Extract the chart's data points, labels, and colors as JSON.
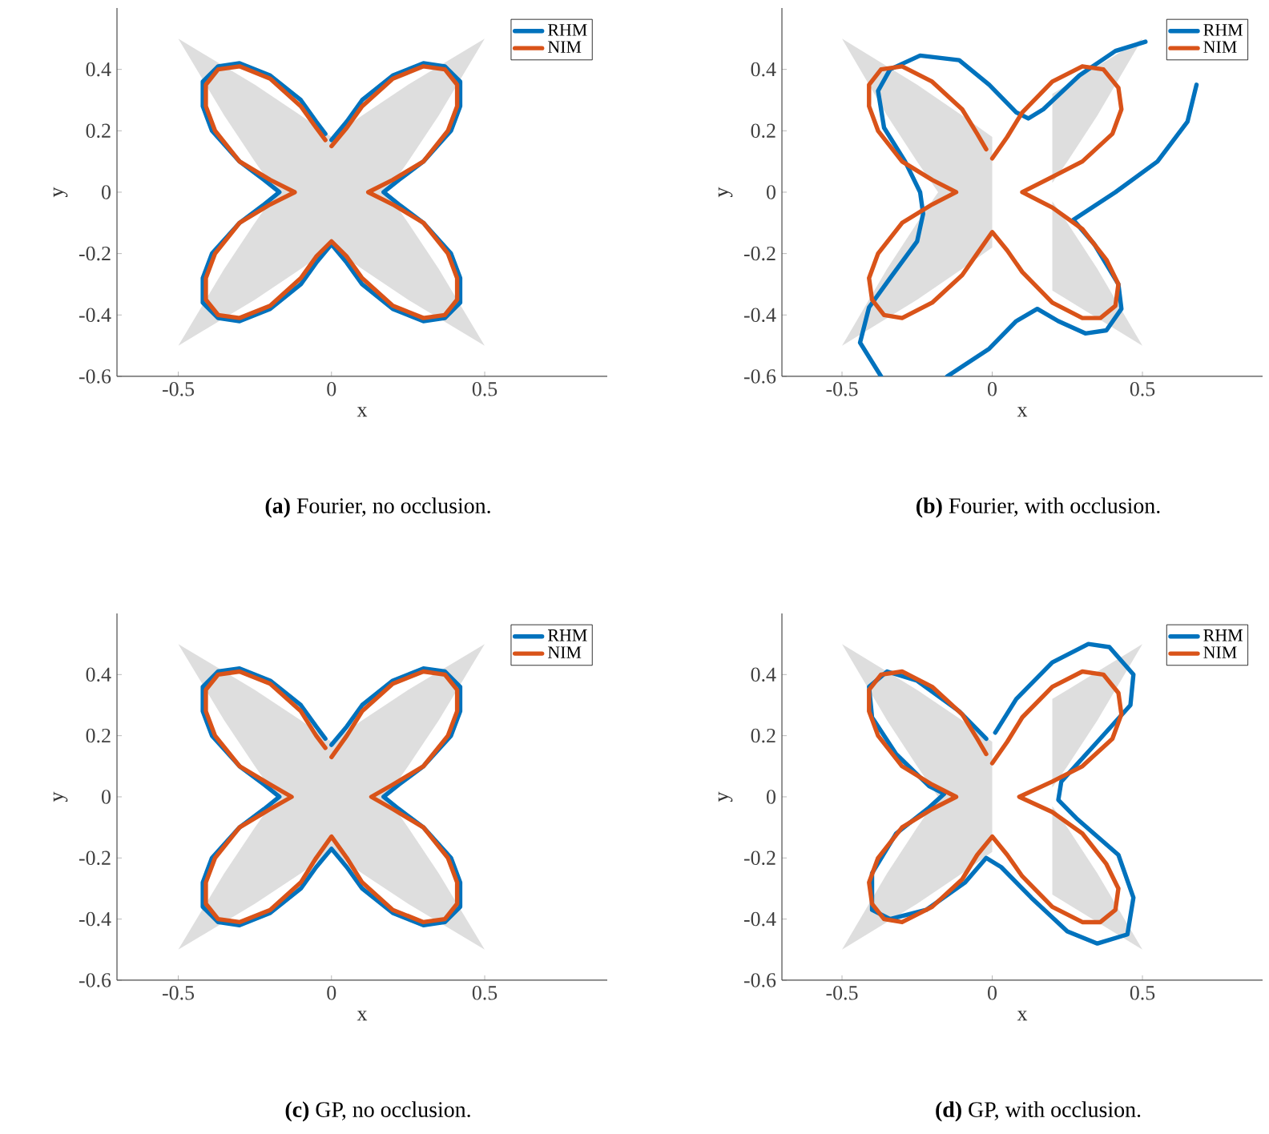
{
  "chart_data": [
    {
      "type": "line",
      "annotations": [
        "**(a)** Fourier, no occlusion."
      ],
      "xlabel": "x",
      "ylabel": "y",
      "xlim": [
        -0.7,
        0.9
      ],
      "ylim": [
        -0.6,
        0.6
      ],
      "xticks": [
        -0.5,
        0,
        0.5
      ],
      "yticks": [
        -0.6,
        -0.4,
        -0.2,
        0,
        0.2,
        0.4
      ],
      "legend": "top right",
      "series": [
        {
          "type": "area",
          "color": "#dedede",
          "x": [
            -0.5,
            -0.25,
            -0.1,
            0,
            0.1,
            0.25,
            0.5,
            0.35,
            0.25,
            0.18,
            0.25,
            0.35,
            0.5,
            0.25,
            0.1,
            0,
            -0.1,
            -0.25,
            -0.5,
            -0.35,
            -0.25,
            -0.18,
            -0.25,
            -0.35
          ],
          "values": [
            0.5,
            0.35,
            0.25,
            0.18,
            0.25,
            0.35,
            0.5,
            0.25,
            0.1,
            0,
            -0.1,
            -0.25,
            -0.5,
            -0.35,
            -0.25,
            -0.18,
            -0.25,
            -0.35,
            -0.5,
            -0.25,
            -0.1,
            0,
            0.1,
            0.25
          ]
        },
        {
          "name": "RHM",
          "color": "#0072bd",
          "x": [
            0,
            0.05,
            0.1,
            0.2,
            0.3,
            0.37,
            0.42,
            0.42,
            0.39,
            0.3,
            0.22,
            0.17,
            0.22,
            0.3,
            0.39,
            0.42,
            0.42,
            0.37,
            0.3,
            0.2,
            0.1,
            0.05,
            0,
            -0.05,
            -0.1,
            -0.2,
            -0.3,
            -0.37,
            -0.42,
            -0.42,
            -0.39,
            -0.3,
            -0.22,
            -0.17,
            -0.22,
            -0.3,
            -0.39,
            -0.42,
            -0.42,
            -0.37,
            -0.3,
            -0.2,
            -0.1,
            -0.05,
            -0.02
          ],
          "values": [
            0.17,
            0.23,
            0.3,
            0.38,
            0.42,
            0.41,
            0.36,
            0.28,
            0.2,
            0.1,
            0.04,
            0,
            -0.04,
            -0.1,
            -0.2,
            -0.28,
            -0.36,
            -0.41,
            -0.42,
            -0.38,
            -0.3,
            -0.23,
            -0.17,
            -0.23,
            -0.3,
            -0.38,
            -0.42,
            -0.41,
            -0.36,
            -0.28,
            -0.2,
            -0.1,
            -0.04,
            0,
            0.04,
            0.1,
            0.2,
            0.28,
            0.36,
            0.41,
            0.42,
            0.38,
            0.3,
            0.23,
            0.19
          ]
        },
        {
          "name": "NIM",
          "color": "#d95319",
          "x": [
            0,
            0.05,
            0.1,
            0.2,
            0.3,
            0.37,
            0.41,
            0.41,
            0.38,
            0.3,
            0.2,
            0.12,
            0.2,
            0.3,
            0.38,
            0.41,
            0.41,
            0.37,
            0.3,
            0.2,
            0.1,
            0.05,
            0,
            -0.05,
            -0.1,
            -0.2,
            -0.3,
            -0.37,
            -0.41,
            -0.41,
            -0.38,
            -0.3,
            -0.2,
            -0.12,
            -0.2,
            -0.3,
            -0.38,
            -0.41,
            -0.41,
            -0.37,
            -0.3,
            -0.2,
            -0.1,
            -0.05,
            -0.02
          ],
          "values": [
            0.15,
            0.21,
            0.28,
            0.37,
            0.41,
            0.4,
            0.35,
            0.28,
            0.2,
            0.1,
            0.04,
            0,
            -0.04,
            -0.1,
            -0.2,
            -0.28,
            -0.35,
            -0.4,
            -0.41,
            -0.37,
            -0.28,
            -0.21,
            -0.16,
            -0.21,
            -0.28,
            -0.37,
            -0.41,
            -0.4,
            -0.35,
            -0.28,
            -0.2,
            -0.1,
            -0.04,
            0,
            0.04,
            0.1,
            0.2,
            0.28,
            0.35,
            0.4,
            0.41,
            0.37,
            0.28,
            0.21,
            0.17
          ]
        }
      ]
    },
    {
      "type": "line",
      "annotations": [
        "**(b)** Fourier, with occlusion."
      ],
      "xlabel": "x",
      "ylabel": "y",
      "xlim": [
        -0.7,
        0.9
      ],
      "ylim": [
        -0.6,
        0.6
      ],
      "xticks": [
        -0.5,
        0,
        0.5
      ],
      "yticks": [
        -0.6,
        -0.4,
        -0.2,
        0,
        0.2,
        0.4
      ],
      "legend": "top right",
      "series": [
        {
          "type": "area",
          "color": "#dedede",
          "x": [
            0,
            -0.1,
            -0.25,
            -0.5,
            -0.35,
            -0.25,
            -0.18,
            -0.25,
            -0.35,
            -0.5,
            -0.25,
            -0.1,
            0
          ],
          "values": [
            0.18,
            0.25,
            0.35,
            0.5,
            0.25,
            0.1,
            0,
            -0.1,
            -0.25,
            -0.5,
            -0.35,
            -0.25,
            -0.18
          ]
        },
        {
          "type": "area",
          "color": "#dedede",
          "x": [
            0.2,
            0.25,
            0.5,
            0.35,
            0.25,
            0.2,
            0.2,
            0.25,
            0.35,
            0.5,
            0.25,
            0.2
          ],
          "values": [
            0.32,
            0.35,
            0.5,
            0.25,
            0.1,
            0.03,
            -0.03,
            -0.1,
            -0.25,
            -0.5,
            -0.35,
            -0.32
          ]
        },
        {
          "name": "RHM",
          "color": "#0072bd",
          "x": [
            -0.37,
            -0.44,
            -0.41,
            -0.34,
            -0.25,
            -0.23,
            -0.24,
            -0.29,
            -0.36,
            -0.38,
            -0.34,
            -0.24,
            -0.11,
            -0.01,
            0.08,
            0.12,
            0.17,
            0.29,
            0.41,
            0.51,
            0.64,
            0.68,
            0.65,
            0.55,
            0.41,
            0.27,
            0.34,
            0.42,
            0.43,
            0.38,
            0.31,
            0.22,
            0.15,
            0.08,
            -0.01,
            -0.15
          ],
          "values": [
            -0.6,
            -0.49,
            -0.375,
            -0.28,
            -0.16,
            -0.07,
            0,
            0.1,
            0.21,
            0.33,
            0.4,
            0.445,
            0.43,
            0.35,
            0.26,
            0.24,
            0.27,
            0.38,
            0.46,
            0.49,
            null,
            0.35,
            0.23,
            0.1,
            0,
            -0.09,
            -0.17,
            -0.3,
            -0.38,
            -0.45,
            -0.46,
            -0.42,
            -0.38,
            -0.42,
            -0.51,
            -0.6
          ]
        },
        {
          "name": "NIM",
          "color": "#d95319",
          "x": [
            0,
            0.05,
            0.1,
            0.2,
            0.3,
            0.37,
            0.42,
            0.43,
            0.4,
            0.3,
            0.2,
            0.1,
            0.2,
            0.3,
            0.38,
            0.42,
            0.41,
            0.36,
            0.3,
            0.2,
            0.1,
            0.05,
            0,
            -0.05,
            -0.1,
            -0.2,
            -0.3,
            -0.36,
            -0.4,
            -0.41,
            -0.38,
            -0.3,
            -0.2,
            -0.12,
            -0.2,
            -0.3,
            -0.38,
            -0.41,
            -0.41,
            -0.37,
            -0.3,
            -0.2,
            -0.1,
            -0.05,
            -0.02
          ],
          "values": [
            0.11,
            0.18,
            0.26,
            0.36,
            0.41,
            0.4,
            0.34,
            0.27,
            0.19,
            0.1,
            0.05,
            0,
            -0.05,
            -0.12,
            -0.22,
            -0.3,
            -0.37,
            -0.41,
            -0.41,
            -0.36,
            -0.26,
            -0.19,
            -0.13,
            -0.2,
            -0.27,
            -0.36,
            -0.41,
            -0.4,
            -0.35,
            -0.28,
            -0.2,
            -0.1,
            -0.04,
            0,
            0.04,
            0.1,
            0.2,
            0.28,
            0.35,
            0.4,
            0.41,
            0.36,
            0.27,
            0.19,
            0.14
          ]
        }
      ]
    },
    {
      "type": "line",
      "annotations": [
        "**(c)** GP, no occlusion."
      ],
      "xlabel": "x",
      "ylabel": "y",
      "xlim": [
        -0.7,
        0.9
      ],
      "ylim": [
        -0.6,
        0.6
      ],
      "xticks": [
        -0.5,
        0,
        0.5
      ],
      "yticks": [
        -0.6,
        -0.4,
        -0.2,
        0,
        0.2,
        0.4
      ],
      "legend": "top right",
      "series": [
        {
          "type": "area",
          "color": "#dedede",
          "x": [
            -0.5,
            -0.25,
            -0.1,
            0,
            0.1,
            0.25,
            0.5,
            0.35,
            0.25,
            0.18,
            0.25,
            0.35,
            0.5,
            0.25,
            0.1,
            0,
            -0.1,
            -0.25,
            -0.5,
            -0.35,
            -0.25,
            -0.18,
            -0.25,
            -0.35
          ],
          "values": [
            0.5,
            0.35,
            0.25,
            0.18,
            0.25,
            0.35,
            0.5,
            0.25,
            0.1,
            0,
            -0.1,
            -0.25,
            -0.5,
            -0.35,
            -0.25,
            -0.18,
            -0.25,
            -0.35,
            -0.5,
            -0.25,
            -0.1,
            0,
            0.1,
            0.25
          ]
        },
        {
          "name": "RHM",
          "color": "#0072bd",
          "x": [
            0,
            0.05,
            0.1,
            0.2,
            0.3,
            0.37,
            0.42,
            0.42,
            0.39,
            0.3,
            0.22,
            0.17,
            0.22,
            0.3,
            0.39,
            0.42,
            0.42,
            0.37,
            0.3,
            0.2,
            0.1,
            0.05,
            0,
            -0.05,
            -0.1,
            -0.2,
            -0.3,
            -0.37,
            -0.42,
            -0.42,
            -0.39,
            -0.3,
            -0.22,
            -0.17,
            -0.22,
            -0.3,
            -0.39,
            -0.42,
            -0.42,
            -0.37,
            -0.3,
            -0.2,
            -0.1,
            -0.05,
            -0.02
          ],
          "values": [
            0.17,
            0.23,
            0.3,
            0.38,
            0.42,
            0.41,
            0.36,
            0.28,
            0.2,
            0.1,
            0.04,
            0,
            -0.04,
            -0.1,
            -0.2,
            -0.28,
            -0.36,
            -0.41,
            -0.42,
            -0.38,
            -0.3,
            -0.23,
            -0.17,
            -0.23,
            -0.3,
            -0.38,
            -0.42,
            -0.41,
            -0.36,
            -0.28,
            -0.2,
            -0.1,
            -0.04,
            0,
            0.04,
            0.1,
            0.2,
            0.28,
            0.36,
            0.41,
            0.42,
            0.38,
            0.3,
            0.23,
            0.19
          ]
        },
        {
          "name": "NIM",
          "color": "#d95319",
          "x": [
            0,
            0.05,
            0.1,
            0.2,
            0.3,
            0.37,
            0.41,
            0.41,
            0.38,
            0.3,
            0.2,
            0.13,
            0.2,
            0.3,
            0.38,
            0.41,
            0.41,
            0.37,
            0.3,
            0.2,
            0.1,
            0.05,
            0,
            -0.05,
            -0.1,
            -0.2,
            -0.3,
            -0.37,
            -0.41,
            -0.41,
            -0.38,
            -0.3,
            -0.2,
            -0.13,
            -0.2,
            -0.3,
            -0.38,
            -0.41,
            -0.41,
            -0.37,
            -0.3,
            -0.2,
            -0.1,
            -0.05,
            -0.02
          ],
          "values": [
            0.13,
            0.2,
            0.28,
            0.37,
            0.41,
            0.4,
            0.35,
            0.28,
            0.2,
            0.1,
            0.04,
            0,
            -0.04,
            -0.1,
            -0.2,
            -0.28,
            -0.35,
            -0.4,
            -0.41,
            -0.37,
            -0.28,
            -0.2,
            -0.13,
            -0.2,
            -0.28,
            -0.37,
            -0.41,
            -0.4,
            -0.35,
            -0.28,
            -0.2,
            -0.1,
            -0.04,
            0,
            0.04,
            0.1,
            0.2,
            0.28,
            0.35,
            0.4,
            0.41,
            0.37,
            0.28,
            0.2,
            0.16
          ]
        }
      ]
    },
    {
      "type": "line",
      "annotations": [
        "**(d)** GP, with occlusion."
      ],
      "xlabel": "x",
      "ylabel": "y",
      "xlim": [
        -0.7,
        0.9
      ],
      "ylim": [
        -0.6,
        0.6
      ],
      "xticks": [
        -0.5,
        0,
        0.5
      ],
      "yticks": [
        -0.6,
        -0.4,
        -0.2,
        0,
        0.2,
        0.4
      ],
      "legend": "top right",
      "series": [
        {
          "type": "area",
          "color": "#dedede",
          "x": [
            0,
            -0.1,
            -0.25,
            -0.5,
            -0.35,
            -0.25,
            -0.18,
            -0.25,
            -0.35,
            -0.5,
            -0.25,
            -0.1,
            0
          ],
          "values": [
            0.18,
            0.25,
            0.35,
            0.5,
            0.25,
            0.1,
            0,
            -0.1,
            -0.25,
            -0.5,
            -0.35,
            -0.25,
            -0.18
          ]
        },
        {
          "type": "area",
          "color": "#dedede",
          "x": [
            0.2,
            0.25,
            0.5,
            0.35,
            0.25,
            0.2,
            0.2,
            0.25,
            0.35,
            0.5,
            0.25,
            0.2
          ],
          "values": [
            0.32,
            0.35,
            0.5,
            0.25,
            0.1,
            0.03,
            -0.03,
            -0.1,
            -0.25,
            -0.5,
            -0.35,
            -0.32
          ]
        },
        {
          "name": "RHM",
          "color": "#0072bd",
          "x": [
            -0.02,
            -0.11,
            -0.25,
            -0.35,
            -0.41,
            -0.4,
            -0.32,
            -0.21,
            -0.16,
            -0.21,
            -0.32,
            -0.4,
            -0.4,
            -0.34,
            -0.22,
            -0.09,
            -0.02,
            0.03,
            0.13,
            0.25,
            0.35,
            0.45,
            0.47,
            0.42,
            0.28,
            0.22,
            0.23,
            0.35,
            0.46,
            0.47,
            0.39,
            0.32,
            0.2,
            0.08,
            0.01
          ],
          "values": [
            0.19,
            0.28,
            0.38,
            0.41,
            0.36,
            0.26,
            0.14,
            0.035,
            0.01,
            -0.035,
            -0.12,
            -0.25,
            -0.37,
            -0.4,
            -0.37,
            -0.28,
            -0.2,
            -0.23,
            -0.33,
            -0.44,
            -0.48,
            -0.45,
            -0.33,
            -0.19,
            -0.07,
            -0.01,
            0.05,
            0.18,
            0.3,
            0.4,
            0.49,
            0.5,
            0.44,
            0.32,
            0.21
          ]
        },
        {
          "name": "NIM",
          "color": "#d95319",
          "x": [
            0,
            0.05,
            0.1,
            0.2,
            0.3,
            0.37,
            0.42,
            0.43,
            0.4,
            0.3,
            0.2,
            0.09,
            0.2,
            0.3,
            0.38,
            0.42,
            0.41,
            0.36,
            0.3,
            0.2,
            0.1,
            0.05,
            0,
            -0.05,
            -0.1,
            -0.2,
            -0.3,
            -0.36,
            -0.4,
            -0.41,
            -0.38,
            -0.3,
            -0.2,
            -0.12,
            -0.2,
            -0.3,
            -0.38,
            -0.41,
            -0.41,
            -0.37,
            -0.3,
            -0.2,
            -0.1,
            -0.05,
            -0.02
          ],
          "values": [
            0.11,
            0.18,
            0.26,
            0.36,
            0.41,
            0.4,
            0.34,
            0.27,
            0.19,
            0.1,
            0.05,
            0,
            -0.05,
            -0.12,
            -0.22,
            -0.3,
            -0.37,
            -0.41,
            -0.41,
            -0.36,
            -0.26,
            -0.19,
            -0.13,
            -0.19,
            -0.27,
            -0.36,
            -0.41,
            -0.4,
            -0.35,
            -0.28,
            -0.2,
            -0.1,
            -0.04,
            0,
            0.04,
            0.1,
            0.2,
            0.28,
            0.35,
            0.4,
            0.41,
            0.36,
            0.27,
            0.19,
            0.14
          ]
        }
      ]
    }
  ]
}
